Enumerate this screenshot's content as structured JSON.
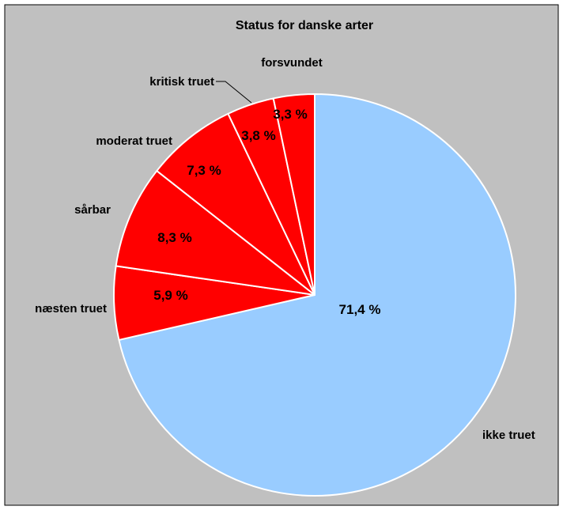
{
  "chart_data": {
    "type": "pie",
    "title": "Status for danske arter",
    "slices": [
      {
        "label": "ikke truet",
        "value": 71.4,
        "value_label": "71,4 %",
        "color": "#99ccff"
      },
      {
        "label": "næsten truet",
        "value": 5.9,
        "value_label": "5,9 %",
        "color": "#ff0000"
      },
      {
        "label": "sårbar",
        "value": 8.3,
        "value_label": "8,3 %",
        "color": "#ff0000"
      },
      {
        "label": "moderat truet",
        "value": 7.3,
        "value_label": "7,3 %",
        "color": "#ff0000"
      },
      {
        "label": "kritisk truet",
        "value": 3.8,
        "value_label": "3,8 %",
        "color": "#ff0000"
      },
      {
        "label": "forsvundet",
        "value": 3.3,
        "value_label": "3,3 %",
        "color": "#ff0000"
      }
    ],
    "background_color": "#c0c0c0",
    "slice_border_color": "#ffffff",
    "legend": "none"
  }
}
